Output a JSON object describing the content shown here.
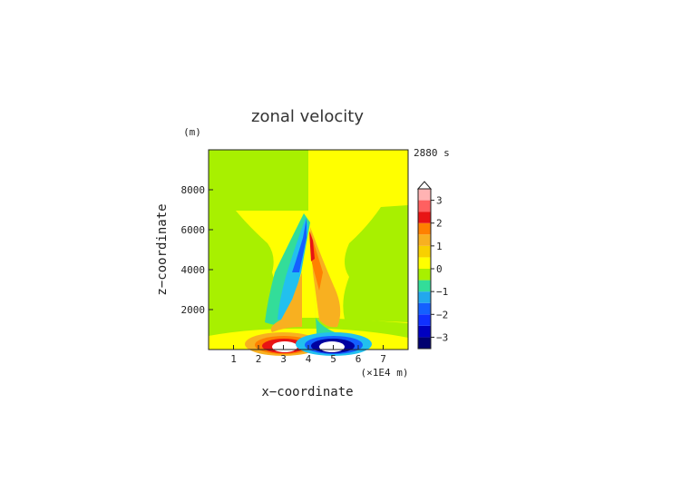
{
  "chart_data": {
    "type": "heatmap",
    "title": "zonal velocity",
    "xlabel": "x−coordinate",
    "ylabel": "z−coordinate",
    "x_unit": "(×1E4 m)",
    "y_unit": "(m)",
    "time_label": "2880 s",
    "xlim": [
      0,
      8
    ],
    "ylim": [
      0,
      10000
    ],
    "x_ticks": [
      "1",
      "2",
      "3",
      "4",
      "5",
      "6",
      "7"
    ],
    "x_tick_values": [
      1,
      2,
      3,
      4,
      5,
      6,
      7
    ],
    "y_ticks": [
      "2000",
      "4000",
      "6000",
      "8000"
    ],
    "y_tick_values": [
      2000,
      4000,
      6000,
      8000
    ],
    "colorbar": {
      "labels": [
        "3",
        "2",
        "1",
        "0",
        "−1",
        "−2",
        "−3"
      ],
      "label_values": [
        3,
        2,
        1,
        0,
        -1,
        -2,
        -3
      ],
      "range": [
        -3.5,
        3.5
      ],
      "extend_top": true
    },
    "colors": {
      "strong_pos": "#ffb3b3",
      "pos_3": "#ff6060",
      "pos_2": "#e81414",
      "pos_1": "#ff8000",
      "pos_05": "#f8b020",
      "zero_pos": "#ffff00",
      "zero_neg": "#a8f000",
      "neg_05": "#33dd99",
      "neg_1": "#22c0ee",
      "neg_2": "#1460ff",
      "neg_3": "#0000a0"
    }
  }
}
